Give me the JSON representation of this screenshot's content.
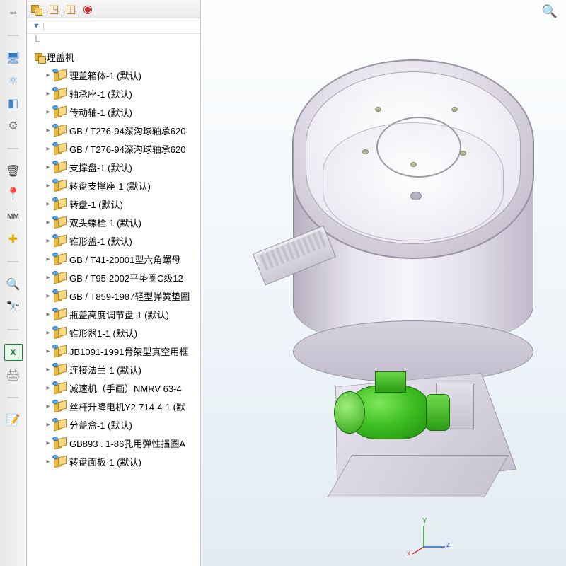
{
  "sidebar": {
    "buttons": [
      {
        "name": "collapse-icon",
        "glyph": "⇔",
        "color": "#707070"
      },
      {
        "name": "divider-icon",
        "glyph": "—",
        "color": "#b0b0b0"
      },
      {
        "name": "monitor-icon",
        "glyph": "🖥",
        "color": "#3a7bc8"
      },
      {
        "name": "molecule-icon",
        "glyph": "⚛",
        "color": "#6aa9e0"
      },
      {
        "name": "model-icon",
        "glyph": "◧",
        "color": "#4488cc"
      },
      {
        "name": "settings-icon",
        "glyph": "⚙",
        "color": "#808080"
      },
      {
        "name": "divider-icon-2",
        "glyph": "—",
        "color": "#b0b0b0"
      },
      {
        "name": "bucket-icon",
        "glyph": "🗑",
        "color": "#404040"
      },
      {
        "name": "marker-icon",
        "glyph": "📍",
        "color": "#1a8c1a"
      },
      {
        "name": "measure-icon",
        "glyph": "MM",
        "color": "#606060"
      },
      {
        "name": "plus-icon",
        "glyph": "✚",
        "color": "#e0a800"
      },
      {
        "name": "divider-icon-3",
        "glyph": "—",
        "color": "#b0b0b0"
      },
      {
        "name": "search-icon",
        "glyph": "🔍",
        "color": "#606060"
      },
      {
        "name": "binoculars-icon",
        "glyph": "🔭",
        "color": "#606060"
      },
      {
        "name": "divider-icon-4",
        "glyph": "—",
        "color": "#b0b0b0"
      },
      {
        "name": "excel-icon",
        "glyph": "X",
        "color": "#1e7e34"
      },
      {
        "name": "print-icon",
        "glyph": "🖨",
        "color": "#808080"
      },
      {
        "name": "divider-icon-5",
        "glyph": "—",
        "color": "#b0b0b0"
      },
      {
        "name": "note-icon",
        "glyph": "📝",
        "color": "#4488cc"
      }
    ]
  },
  "tree": {
    "tabs": [
      "assembly-tab-icon",
      "config-tab-icon",
      "display-tab-icon",
      "appearance-tab-icon"
    ],
    "filter_glyph": "▼",
    "origin_glyph": "└",
    "root": "理盖机",
    "items": [
      "理盖箱体-1 (默认)",
      "轴承座-1 (默认)",
      "传动轴-1 (默认)",
      "GB / T276-94深沟球轴承620",
      "GB / T276-94深沟球轴承620",
      "支撑盘-1 (默认)",
      "转盘支撑座-1 (默认)",
      "转盘-1 (默认)",
      "双头螺栓-1 (默认)",
      "锥形盖-1 (默认)",
      "GB / T41-20001型六角螺母",
      "GB / T95-2002平垫圈C级12",
      "GB / T859-1987轻型弹簧垫圈",
      "瓶盖高度调节盘-1 (默认)",
      "锥形器1-1 (默认)",
      "JB1091-1991骨架型真空用框",
      "连接法兰-1 (默认)",
      "减速机（手画）NMRV 63-4",
      "丝杆升降电机Y2-714-4-1 (默",
      "分盖盒-1 (默认)",
      "GB893 . 1-86孔用弹性挡圈A",
      "转盘面板-1 (默认)"
    ]
  },
  "viewport": {
    "triad_labels": {
      "x": "x",
      "y": "Y",
      "z": "z"
    },
    "zoom_glyph": "🔍"
  },
  "colors": {
    "motor": "#2ea314",
    "steel": "#d6d1de"
  }
}
